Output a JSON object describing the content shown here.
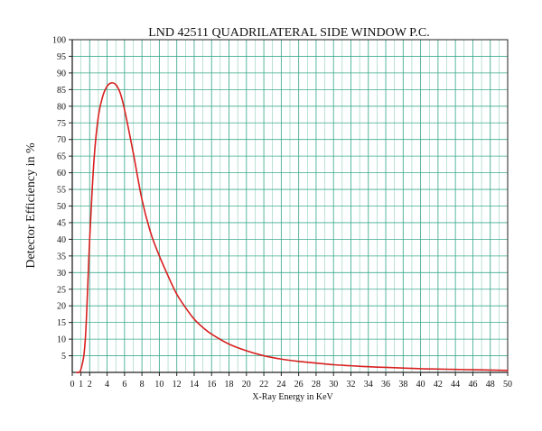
{
  "chart_data": {
    "type": "line",
    "title": "LND 42511 QUADRILATERAL SIDE WINDOW P.C.",
    "xlabel": "X-Ray Energy in KeV",
    "ylabel": "Detector Efficiency in %",
    "xlim": [
      0,
      50
    ],
    "ylim": [
      0,
      100
    ],
    "x_ticks": [
      0,
      1,
      2,
      4,
      6,
      8,
      10,
      12,
      14,
      16,
      18,
      20,
      22,
      24,
      26,
      28,
      30,
      32,
      34,
      36,
      38,
      40,
      42,
      44,
      46,
      48,
      50
    ],
    "y_ticks": [
      5,
      10,
      15,
      20,
      25,
      30,
      35,
      40,
      45,
      50,
      55,
      60,
      65,
      70,
      75,
      80,
      85,
      90,
      95,
      100
    ],
    "grid": true,
    "colors": {
      "grid": "#3dab8e",
      "curve": "#d82020",
      "axis": "#222222"
    },
    "series": [
      {
        "x": [
          0.5,
          1,
          1.5,
          2,
          2.5,
          3,
          3.5,
          4,
          4.5,
          5,
          5.5,
          6,
          7,
          8,
          9,
          10,
          11,
          12,
          13,
          14,
          15,
          16,
          18,
          20,
          22,
          24,
          26,
          28,
          30,
          32,
          34,
          36,
          38,
          40,
          42,
          44,
          46,
          48,
          50
        ],
        "y": [
          0,
          1,
          10,
          40,
          64,
          77,
          83,
          86,
          87,
          86.5,
          84,
          79,
          66,
          52,
          42,
          35,
          29,
          23.5,
          19.5,
          16,
          13.5,
          11.5,
          8.5,
          6.5,
          5,
          4,
          3.3,
          2.8,
          2.3,
          2,
          1.7,
          1.5,
          1.3,
          1.1,
          1,
          0.9,
          0.8,
          0.7,
          0.6
        ]
      }
    ]
  }
}
